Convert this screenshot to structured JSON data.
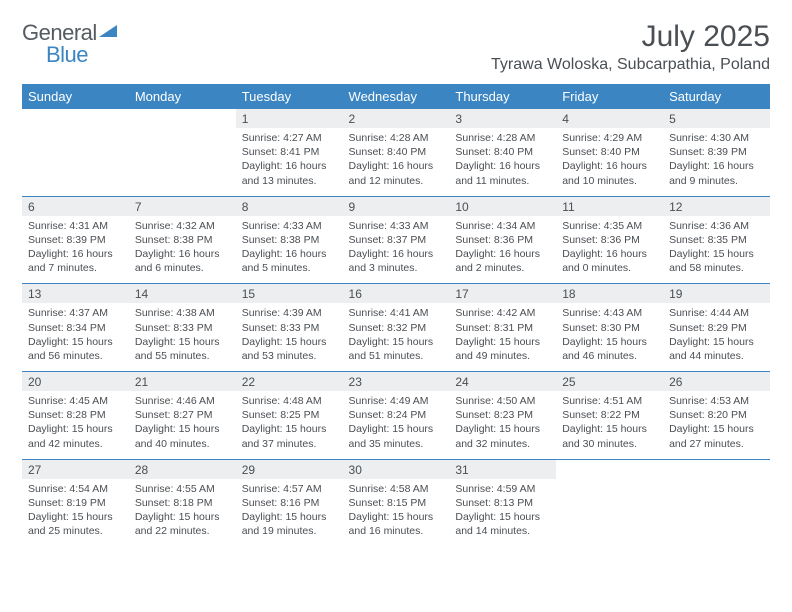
{
  "brand": {
    "part1": "General",
    "part2": "Blue"
  },
  "title": "July 2025",
  "location": "Tyrawa Woloska, Subcarpathia, Poland",
  "colors": {
    "accent": "#3b85c3",
    "headerText": "#ffffff",
    "bodyText": "#4a4f54",
    "dayNumBg": "#eceeef",
    "pageBg": "#ffffff"
  },
  "dayNames": [
    "Sunday",
    "Monday",
    "Tuesday",
    "Wednesday",
    "Thursday",
    "Friday",
    "Saturday"
  ],
  "weeks": [
    [
      null,
      null,
      {
        "n": "1",
        "sr": "4:27 AM",
        "ss": "8:41 PM",
        "dl": "16 hours and 13 minutes."
      },
      {
        "n": "2",
        "sr": "4:28 AM",
        "ss": "8:40 PM",
        "dl": "16 hours and 12 minutes."
      },
      {
        "n": "3",
        "sr": "4:28 AM",
        "ss": "8:40 PM",
        "dl": "16 hours and 11 minutes."
      },
      {
        "n": "4",
        "sr": "4:29 AM",
        "ss": "8:40 PM",
        "dl": "16 hours and 10 minutes."
      },
      {
        "n": "5",
        "sr": "4:30 AM",
        "ss": "8:39 PM",
        "dl": "16 hours and 9 minutes."
      }
    ],
    [
      {
        "n": "6",
        "sr": "4:31 AM",
        "ss": "8:39 PM",
        "dl": "16 hours and 7 minutes."
      },
      {
        "n": "7",
        "sr": "4:32 AM",
        "ss": "8:38 PM",
        "dl": "16 hours and 6 minutes."
      },
      {
        "n": "8",
        "sr": "4:33 AM",
        "ss": "8:38 PM",
        "dl": "16 hours and 5 minutes."
      },
      {
        "n": "9",
        "sr": "4:33 AM",
        "ss": "8:37 PM",
        "dl": "16 hours and 3 minutes."
      },
      {
        "n": "10",
        "sr": "4:34 AM",
        "ss": "8:36 PM",
        "dl": "16 hours and 2 minutes."
      },
      {
        "n": "11",
        "sr": "4:35 AM",
        "ss": "8:36 PM",
        "dl": "16 hours and 0 minutes."
      },
      {
        "n": "12",
        "sr": "4:36 AM",
        "ss": "8:35 PM",
        "dl": "15 hours and 58 minutes."
      }
    ],
    [
      {
        "n": "13",
        "sr": "4:37 AM",
        "ss": "8:34 PM",
        "dl": "15 hours and 56 minutes."
      },
      {
        "n": "14",
        "sr": "4:38 AM",
        "ss": "8:33 PM",
        "dl": "15 hours and 55 minutes."
      },
      {
        "n": "15",
        "sr": "4:39 AM",
        "ss": "8:33 PM",
        "dl": "15 hours and 53 minutes."
      },
      {
        "n": "16",
        "sr": "4:41 AM",
        "ss": "8:32 PM",
        "dl": "15 hours and 51 minutes."
      },
      {
        "n": "17",
        "sr": "4:42 AM",
        "ss": "8:31 PM",
        "dl": "15 hours and 49 minutes."
      },
      {
        "n": "18",
        "sr": "4:43 AM",
        "ss": "8:30 PM",
        "dl": "15 hours and 46 minutes."
      },
      {
        "n": "19",
        "sr": "4:44 AM",
        "ss": "8:29 PM",
        "dl": "15 hours and 44 minutes."
      }
    ],
    [
      {
        "n": "20",
        "sr": "4:45 AM",
        "ss": "8:28 PM",
        "dl": "15 hours and 42 minutes."
      },
      {
        "n": "21",
        "sr": "4:46 AM",
        "ss": "8:27 PM",
        "dl": "15 hours and 40 minutes."
      },
      {
        "n": "22",
        "sr": "4:48 AM",
        "ss": "8:25 PM",
        "dl": "15 hours and 37 minutes."
      },
      {
        "n": "23",
        "sr": "4:49 AM",
        "ss": "8:24 PM",
        "dl": "15 hours and 35 minutes."
      },
      {
        "n": "24",
        "sr": "4:50 AM",
        "ss": "8:23 PM",
        "dl": "15 hours and 32 minutes."
      },
      {
        "n": "25",
        "sr": "4:51 AM",
        "ss": "8:22 PM",
        "dl": "15 hours and 30 minutes."
      },
      {
        "n": "26",
        "sr": "4:53 AM",
        "ss": "8:20 PM",
        "dl": "15 hours and 27 minutes."
      }
    ],
    [
      {
        "n": "27",
        "sr": "4:54 AM",
        "ss": "8:19 PM",
        "dl": "15 hours and 25 minutes."
      },
      {
        "n": "28",
        "sr": "4:55 AM",
        "ss": "8:18 PM",
        "dl": "15 hours and 22 minutes."
      },
      {
        "n": "29",
        "sr": "4:57 AM",
        "ss": "8:16 PM",
        "dl": "15 hours and 19 minutes."
      },
      {
        "n": "30",
        "sr": "4:58 AM",
        "ss": "8:15 PM",
        "dl": "15 hours and 16 minutes."
      },
      {
        "n": "31",
        "sr": "4:59 AM",
        "ss": "8:13 PM",
        "dl": "15 hours and 14 minutes."
      },
      null,
      null
    ]
  ],
  "labels": {
    "sunrise": "Sunrise:",
    "sunset": "Sunset:",
    "daylight": "Daylight:"
  }
}
